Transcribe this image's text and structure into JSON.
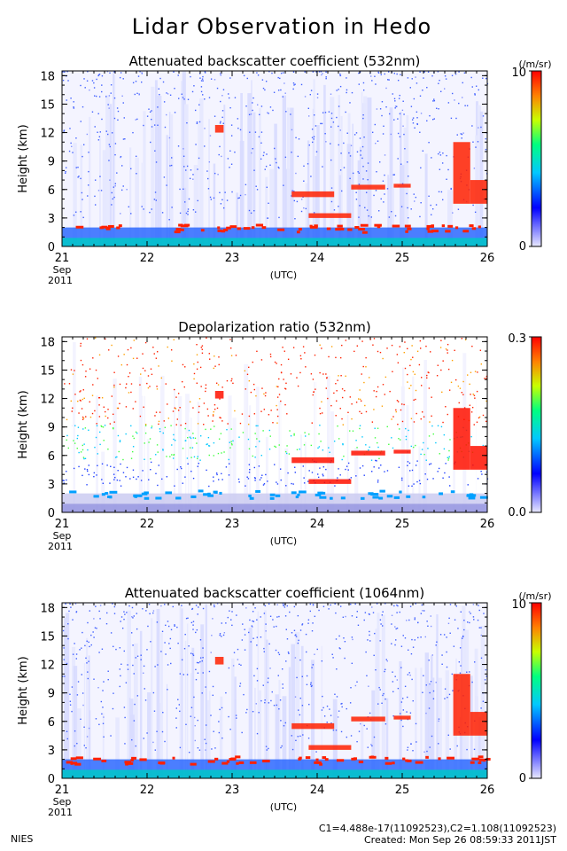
{
  "title": "Lidar Observation in Hedo",
  "footer": {
    "left": "NIES",
    "line1": "C1=4.488e-17(11092523),C2=1.108(11092523)",
    "line2": "Created: Mon Sep 26 08:59:33 2011JST"
  },
  "colors": {
    "scale": [
      "#e8e8ff",
      "#0000ff",
      "#00c8ff",
      "#00ff80",
      "#c8ff00",
      "#ff8000",
      "#ff0000"
    ],
    "frame": "#000000"
  },
  "chart_data": [
    {
      "type": "heatmap",
      "title": "Attenuated backscatter coefficient (532nm)",
      "xlabel": "(UTC)",
      "ylabel": "Height (km)",
      "x_ticks": [
        "21",
        "22",
        "23",
        "24",
        "25",
        "26"
      ],
      "x_sub": [
        "Sep",
        "2011"
      ],
      "y_ticks": [
        "0",
        "3",
        "6",
        "9",
        "12",
        "15",
        "18"
      ],
      "xlim": [
        21,
        26
      ],
      "ylim": [
        0,
        18.5
      ],
      "colorbar": {
        "unit": "(/m/sr)",
        "max": "10",
        "min": "0"
      }
    },
    {
      "type": "heatmap",
      "title": "Depolarization ratio (532nm)",
      "xlabel": "(UTC)",
      "ylabel": "Height (km)",
      "x_ticks": [
        "21",
        "22",
        "23",
        "24",
        "25",
        "26"
      ],
      "x_sub": [
        "Sep",
        "2011"
      ],
      "y_ticks": [
        "0",
        "3",
        "6",
        "9",
        "12",
        "15",
        "18"
      ],
      "xlim": [
        21,
        26
      ],
      "ylim": [
        0,
        18.5
      ],
      "colorbar": {
        "unit": "",
        "max": "0.3",
        "min": "0.0"
      }
    },
    {
      "type": "heatmap",
      "title": "Attenuated backscatter coefficient (1064nm)",
      "xlabel": "(UTC)",
      "ylabel": "Height (km)",
      "x_ticks": [
        "21",
        "22",
        "23",
        "24",
        "25",
        "26"
      ],
      "x_sub": [
        "Sep",
        "2011"
      ],
      "y_ticks": [
        "0",
        "3",
        "6",
        "9",
        "12",
        "15",
        "18"
      ],
      "xlim": [
        21,
        26
      ],
      "ylim": [
        0,
        18.5
      ],
      "colorbar": {
        "unit": "(/m/sr)",
        "max": "10",
        "min": "0"
      }
    }
  ]
}
